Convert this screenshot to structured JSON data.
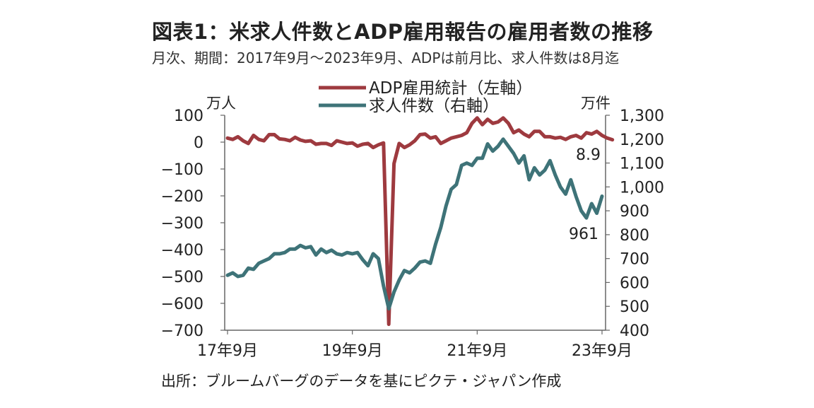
{
  "header": {
    "title": "図表1：米求人件数とADP雇用報告の雇用者数の推移",
    "subtitle": "月次、期間：2017年9月～2023年9月、ADPは前月比、求人件数は8月迄"
  },
  "footer": {
    "source": "出所：ブルームバーグのデータを基にピクテ・ジャパン作成"
  },
  "colors": {
    "adp": "#9e3a3f",
    "openings": "#3e7378",
    "axis": "#666666"
  },
  "chart_data": {
    "type": "line",
    "title": "図表1：米求人件数とADP雇用報告の雇用者数の推移",
    "subtitle": "月次、期間：2017年9月～2023年9月、ADPは前月比、求人件数は8月迄",
    "left_unit": "万人",
    "right_unit": "万件",
    "x_tick_labels": [
      "17年9月",
      "19年9月",
      "21年9月",
      "23年9月"
    ],
    "y_left": {
      "range": [
        -700,
        100
      ],
      "ticks": [
        "100",
        "0",
        "−100",
        "−200",
        "−300",
        "−400",
        "−500",
        "−600",
        "−700"
      ]
    },
    "y_right": {
      "range": [
        400,
        1300
      ],
      "ticks": [
        "1,300",
        "1,200",
        "1,100",
        "1,000",
        "900",
        "800",
        "700",
        "600",
        "500",
        "400"
      ]
    },
    "legend": [
      "ADP雇用統計（左軸）",
      "求人件数（右軸）"
    ],
    "legend_position": "top-center",
    "annotations": {
      "adp_last": "8.9",
      "openings_last": "961"
    },
    "series": [
      {
        "name": "ADP雇用統計（左軸）",
        "axis": "left",
        "x_start": "2017-09",
        "values": [
          15,
          10,
          20,
          5,
          -5,
          25,
          10,
          5,
          28,
          28,
          12,
          10,
          5,
          18,
          8,
          3,
          5,
          -8,
          -5,
          -5,
          -12,
          5,
          0,
          -5,
          -3,
          -15,
          -8,
          -5,
          -20,
          -10,
          -3,
          -678,
          -80,
          -5,
          -20,
          -10,
          5,
          28,
          30,
          15,
          20,
          -5,
          5,
          15,
          20,
          25,
          35,
          70,
          90,
          65,
          85,
          70,
          75,
          90,
          70,
          35,
          45,
          30,
          20,
          40,
          40,
          20,
          20,
          15,
          18,
          10,
          20,
          25,
          15,
          35,
          30,
          40,
          25,
          15,
          8.9
        ]
      },
      {
        "name": "求人件数（右軸）",
        "axis": "right",
        "x_start": "2017-09",
        "values": [
          630,
          640,
          625,
          630,
          660,
          655,
          680,
          690,
          700,
          720,
          720,
          725,
          740,
          740,
          755,
          745,
          750,
          715,
          740,
          725,
          735,
          720,
          715,
          725,
          720,
          725,
          695,
          670,
          720,
          700,
          585,
          490,
          560,
          610,
          650,
          640,
          660,
          685,
          690,
          680,
          760,
          830,
          920,
          990,
          1010,
          1090,
          1100,
          1090,
          1120,
          1120,
          1180,
          1150,
          1170,
          1200,
          1170,
          1140,
          1100,
          1130,
          1030,
          1080,
          1050,
          1070,
          1110,
          1050,
          1000,
          970,
          1030,
          960,
          900,
          870,
          930,
          890,
          961
        ]
      }
    ]
  }
}
